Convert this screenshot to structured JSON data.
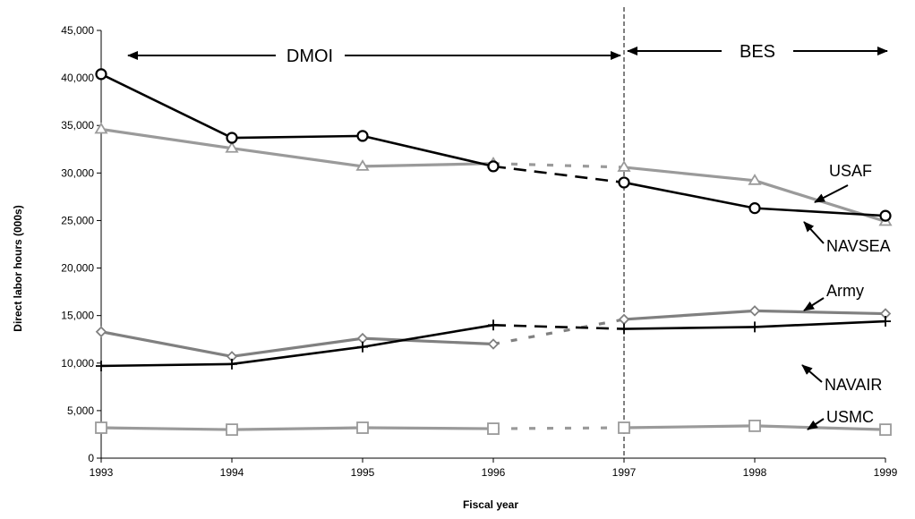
{
  "chart_data": {
    "type": "line",
    "title": "",
    "xlabel": "Fiscal year",
    "ylabel": "Direct labor hours (000s)",
    "x": [
      1993,
      1994,
      1995,
      1996,
      1997,
      1998,
      1999
    ],
    "x_tick_labels": [
      "1993",
      "1994",
      "1995",
      "1996",
      "1997",
      "1998",
      "1999"
    ],
    "y_tick_labels": [
      "0",
      "5,000",
      "10,000",
      "15,000",
      "20,000",
      "25,000",
      "30,000",
      "35,000",
      "40,000",
      "45,000"
    ],
    "ylim": [
      0,
      45000
    ],
    "grid": false,
    "period_divider_x": 1997,
    "periods": [
      {
        "label": "DMOI",
        "from": 1993,
        "to": 1997
      },
      {
        "label": "BES",
        "from": 1997,
        "to": 1999
      }
    ],
    "dashed_segment": {
      "from": 1996,
      "to": 1997
    },
    "series": [
      {
        "name": "USAF",
        "color": "#9a9a9a",
        "marker": "triangle",
        "bold": false,
        "values": [
          34600,
          32600,
          30700,
          31000,
          30600,
          29200,
          24900
        ]
      },
      {
        "name": "NAVSEA",
        "color": "#000000",
        "marker": "circle",
        "bold": true,
        "values": [
          40400,
          33700,
          33900,
          30700,
          29000,
          26300,
          25500
        ]
      },
      {
        "name": "Army",
        "color": "#808080",
        "marker": "diamond",
        "bold": false,
        "values": [
          13300,
          10700,
          12600,
          12000,
          14600,
          15500,
          15200
        ]
      },
      {
        "name": "NAVAIR",
        "color": "#000000",
        "marker": "plus",
        "bold": true,
        "values": [
          9700,
          9900,
          11700,
          14000,
          13600,
          13800,
          14400
        ]
      },
      {
        "name": "USMC",
        "color": "#9a9a9a",
        "marker": "square",
        "bold": false,
        "values": [
          3200,
          3000,
          3200,
          3100,
          3200,
          3400,
          3000
        ]
      }
    ]
  }
}
